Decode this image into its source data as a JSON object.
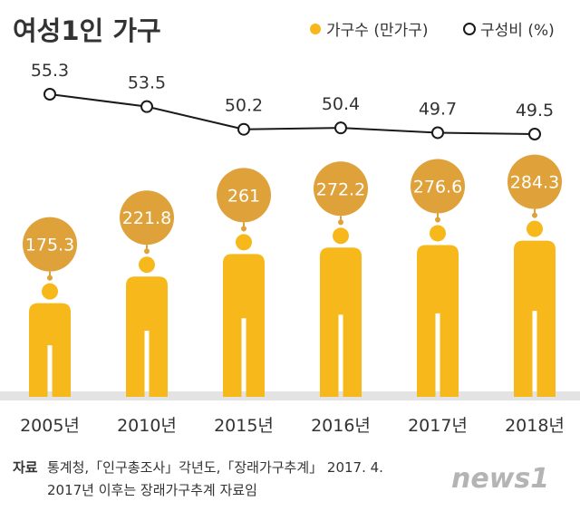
{
  "chart_data": {
    "type": "bar",
    "title": "여성1인 가구",
    "categories": [
      "2005년",
      "2010년",
      "2015년",
      "2016년",
      "2017년",
      "2018년"
    ],
    "series": [
      {
        "name": "가구수 (만가구)",
        "type": "bar",
        "values": [
          175.3,
          221.8,
          261,
          272.2,
          276.6,
          284.3
        ],
        "labels": [
          "175.3",
          "221.8",
          "261",
          "272.2",
          "276.6",
          "284.3"
        ]
      },
      {
        "name": "구성비 (%)",
        "type": "line",
        "values": [
          55.3,
          53.5,
          50.2,
          50.4,
          49.7,
          49.5
        ],
        "labels": [
          "55.3",
          "53.5",
          "50.2",
          "50.4",
          "49.7",
          "49.5"
        ]
      }
    ],
    "legend_position": "top-right",
    "grid": false
  },
  "colors": {
    "bar": "#f6b81b",
    "bubble": "#dfa23b",
    "line": "#1a1a1a",
    "baseline": "#e3e3e3",
    "text": "#333333",
    "logo": "#b4b4b4"
  },
  "source": {
    "label": "자료",
    "line1": "통계청,「인구총조사」각년도,「장래가구추계」 2017. 4.",
    "line2": "2017년 이후는 장래가구추계 자료임"
  },
  "logo_text": "news1"
}
